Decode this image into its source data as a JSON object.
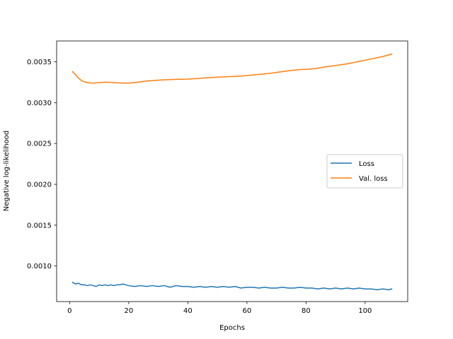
{
  "chart_data": {
    "type": "line",
    "title": "",
    "xlabel": "Epochs",
    "ylabel": "Negative log-likelihood",
    "xlim": [
      -4.4,
      114.4
    ],
    "ylim": [
      0.000565,
      0.003755
    ],
    "xticks": [
      0,
      20,
      40,
      60,
      80,
      100
    ],
    "xtick_labels": [
      "0",
      "20",
      "40",
      "60",
      "80",
      "100"
    ],
    "yticks": [
      0.001,
      0.0015,
      0.002,
      0.0025,
      0.003,
      0.0035
    ],
    "ytick_labels": [
      "0.0010",
      "0.0015",
      "0.0020",
      "0.0025",
      "0.0030",
      "0.0035"
    ],
    "grid": false,
    "legend_position": "center-right",
    "series": [
      {
        "name": "Loss",
        "color": "#1f77b4",
        "x": [
          1,
          2,
          3,
          4,
          5,
          6,
          7,
          8,
          9,
          10,
          11,
          12,
          13,
          14,
          15,
          16,
          17,
          18,
          19,
          20,
          22,
          24,
          26,
          28,
          30,
          32,
          34,
          36,
          38,
          40,
          42,
          44,
          46,
          48,
          50,
          52,
          54,
          56,
          58,
          60,
          62,
          64,
          66,
          68,
          70,
          72,
          74,
          76,
          78,
          80,
          82,
          84,
          86,
          88,
          90,
          92,
          94,
          96,
          98,
          100,
          102,
          104,
          106,
          108,
          109
        ],
        "y": [
          0.0008,
          0.00078,
          0.00079,
          0.00077,
          0.00077,
          0.00076,
          0.00077,
          0.00076,
          0.00075,
          0.00077,
          0.00076,
          0.00077,
          0.00076,
          0.00077,
          0.00076,
          0.00077,
          0.00077,
          0.00078,
          0.00077,
          0.00076,
          0.00075,
          0.00076,
          0.00075,
          0.00076,
          0.00075,
          0.00076,
          0.00074,
          0.00076,
          0.00075,
          0.00075,
          0.00074,
          0.00075,
          0.00074,
          0.00075,
          0.00074,
          0.00075,
          0.00074,
          0.00075,
          0.00073,
          0.00074,
          0.00074,
          0.00073,
          0.00074,
          0.00073,
          0.00073,
          0.00074,
          0.00073,
          0.00073,
          0.00074,
          0.00073,
          0.00073,
          0.00072,
          0.00073,
          0.00072,
          0.00073,
          0.00072,
          0.00073,
          0.00072,
          0.00073,
          0.00072,
          0.00072,
          0.00071,
          0.00072,
          0.00071,
          0.00072
        ]
      },
      {
        "name": "Val. loss",
        "color": "#ff7f0e",
        "x": [
          1,
          2,
          3,
          4,
          5,
          6,
          7,
          8,
          10,
          12,
          14,
          16,
          18,
          20,
          22,
          24,
          26,
          28,
          30,
          32,
          34,
          36,
          38,
          40,
          42,
          44,
          46,
          48,
          50,
          52,
          54,
          56,
          58,
          60,
          62,
          64,
          66,
          68,
          70,
          72,
          74,
          76,
          78,
          80,
          82,
          84,
          86,
          88,
          90,
          92,
          94,
          96,
          98,
          100,
          102,
          104,
          106,
          108,
          109
        ],
        "y": [
          0.00338,
          0.00334,
          0.0033,
          0.00327,
          0.003255,
          0.003245,
          0.003242,
          0.00324,
          0.003245,
          0.00325,
          0.003248,
          0.003243,
          0.00324,
          0.00324,
          0.003245,
          0.003255,
          0.003265,
          0.00327,
          0.003275,
          0.00328,
          0.003282,
          0.003285,
          0.003286,
          0.003288,
          0.003292,
          0.003298,
          0.003303,
          0.003308,
          0.003312,
          0.003315,
          0.003318,
          0.003322,
          0.003326,
          0.003332,
          0.003338,
          0.003345,
          0.003352,
          0.00336,
          0.00337,
          0.00338,
          0.00339,
          0.003398,
          0.003405,
          0.003408,
          0.003412,
          0.003422,
          0.003435,
          0.003445,
          0.003455,
          0.003465,
          0.003475,
          0.00349,
          0.003505,
          0.00352,
          0.003535,
          0.00355,
          0.003565,
          0.003585,
          0.003595
        ]
      }
    ]
  }
}
